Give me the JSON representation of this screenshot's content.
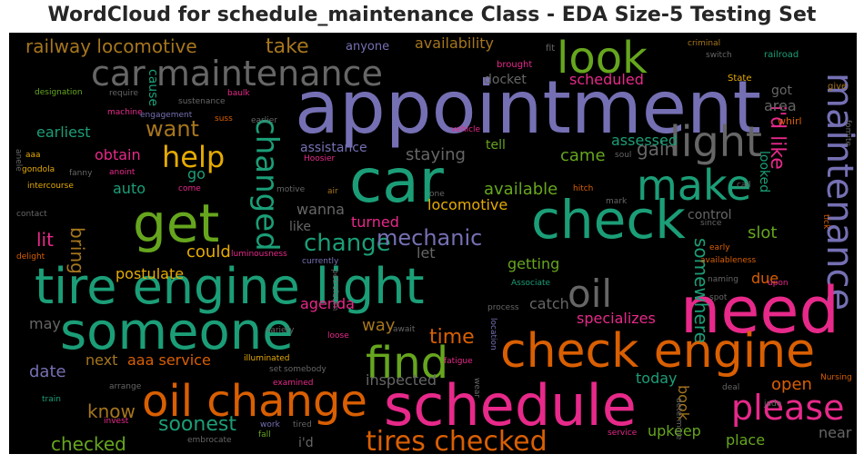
{
  "chart_data": {
    "type": "wordcloud",
    "title": "WordCloud for schedule_maintenance Class - EDA Size-5 Testing Set",
    "background": "#000000",
    "colormap": "Dark2",
    "words": [
      {
        "text": "appointment",
        "color": "#7570b3"
      },
      {
        "text": "car maintenance",
        "color": "#666666"
      },
      {
        "text": "look",
        "color": "#66a61e"
      },
      {
        "text": "light",
        "color": "#666666"
      },
      {
        "text": "maintenance",
        "color": "#7570b3"
      },
      {
        "text": "car",
        "color": "#1b9e77"
      },
      {
        "text": "get",
        "color": "#66a61e"
      },
      {
        "text": "make",
        "color": "#1b9e77"
      },
      {
        "text": "check",
        "color": "#1b9e77"
      },
      {
        "text": "tire engine light",
        "color": "#1b9e77"
      },
      {
        "text": "changed",
        "color": "#1b9e77"
      },
      {
        "text": "someone",
        "color": "#1b9e77"
      },
      {
        "text": "need",
        "color": "#e7298a"
      },
      {
        "text": "oil",
        "color": "#666666"
      },
      {
        "text": "check engine",
        "color": "#d95f02"
      },
      {
        "text": "find",
        "color": "#66a61e"
      },
      {
        "text": "oil change",
        "color": "#d95f02"
      },
      {
        "text": "schedule",
        "color": "#e7298a"
      },
      {
        "text": "please",
        "color": "#e7298a"
      },
      {
        "text": "tires checked",
        "color": "#d95f02"
      },
      {
        "text": "want",
        "color": "#a6761d"
      },
      {
        "text": "help",
        "color": "#e6ab02"
      },
      {
        "text": "change",
        "color": "#1b9e77"
      },
      {
        "text": "mechanic",
        "color": "#7570b3"
      },
      {
        "text": "railway locomotive",
        "color": "#a6761d"
      },
      {
        "text": "take",
        "color": "#a6761d"
      },
      {
        "text": "i'd like",
        "color": "#e7298a"
      },
      {
        "text": "somewhere",
        "color": "#1b9e77"
      },
      {
        "text": "time",
        "color": "#d95f02"
      },
      {
        "text": "soonest",
        "color": "#1b9e77"
      },
      {
        "text": "checked",
        "color": "#66a61e"
      },
      {
        "text": "know",
        "color": "#a6761d"
      },
      {
        "text": "date",
        "color": "#7570b3"
      },
      {
        "text": "available",
        "color": "#66a61e"
      },
      {
        "text": "locomotive",
        "color": "#e6ab02"
      },
      {
        "text": "staying",
        "color": "#666666"
      },
      {
        "text": "came",
        "color": "#66a61e"
      },
      {
        "text": "specializes",
        "color": "#e7298a"
      },
      {
        "text": "scheduled",
        "color": "#e7298a"
      },
      {
        "text": "availability",
        "color": "#a6761d"
      },
      {
        "text": "gain",
        "color": "#666666"
      },
      {
        "text": "slot",
        "color": "#66a61e"
      },
      {
        "text": "could",
        "color": "#e6ab02"
      },
      {
        "text": "postulate",
        "color": "#e6ab02"
      },
      {
        "text": "next",
        "color": "#a6761d"
      },
      {
        "text": "aaa service",
        "color": "#d95f02"
      },
      {
        "text": "obtain",
        "color": "#e7298a"
      },
      {
        "text": "earliest",
        "color": "#1b9e77"
      },
      {
        "text": "assessed",
        "color": "#1b9e77"
      },
      {
        "text": "turned",
        "color": "#e7298a"
      },
      {
        "text": "lit",
        "color": "#e7298a"
      },
      {
        "text": "bring",
        "color": "#a6761d"
      },
      {
        "text": "go",
        "color": "#1b9e77"
      },
      {
        "text": "auto",
        "color": "#1b9e77"
      },
      {
        "text": "wanna",
        "color": "#666666"
      },
      {
        "text": "like",
        "color": "#666666"
      },
      {
        "text": "let",
        "color": "#666666"
      },
      {
        "text": "getting",
        "color": "#66a61e"
      },
      {
        "text": "catch",
        "color": "#666666"
      },
      {
        "text": "agenda",
        "color": "#e7298a"
      },
      {
        "text": "way",
        "color": "#a6761d"
      },
      {
        "text": "may",
        "color": "#666666"
      },
      {
        "text": "open",
        "color": "#d95f02"
      },
      {
        "text": "near",
        "color": "#666666"
      },
      {
        "text": "place",
        "color": "#66a61e"
      },
      {
        "text": "upkeep",
        "color": "#66a61e"
      },
      {
        "text": "today",
        "color": "#1b9e77"
      },
      {
        "text": "book",
        "color": "#a6761d"
      },
      {
        "text": "inspected",
        "color": "#666666"
      },
      {
        "text": "i'd",
        "color": "#666666"
      },
      {
        "text": "control",
        "color": "#666666"
      },
      {
        "text": "looked",
        "color": "#1b9e77"
      },
      {
        "text": "area",
        "color": "#666666"
      },
      {
        "text": "got",
        "color": "#666666"
      },
      {
        "text": "due",
        "color": "#d95f02"
      },
      {
        "text": "tell",
        "color": "#66a61e"
      },
      {
        "text": "docket",
        "color": "#666666"
      },
      {
        "text": "cause",
        "color": "#1b9e77"
      },
      {
        "text": "assistance",
        "color": "#7570b3"
      },
      {
        "text": "anyone",
        "color": "#7570b3"
      },
      {
        "text": "whirl",
        "color": "#d95f02"
      },
      {
        "text": "brought",
        "color": "#e7298a"
      },
      {
        "text": "fit",
        "color": "#666666"
      },
      {
        "text": "criminal",
        "color": "#a6761d"
      },
      {
        "text": "switch",
        "color": "#666666"
      },
      {
        "text": "railroad",
        "color": "#1b9e77"
      },
      {
        "text": "State",
        "color": "#e6ab02"
      },
      {
        "text": "give",
        "color": "#a6761d"
      },
      {
        "text": "fomite",
        "color": "#666666"
      },
      {
        "text": "designation",
        "color": "#66a61e"
      },
      {
        "text": "require",
        "color": "#666666"
      },
      {
        "text": "sustenance",
        "color": "#666666"
      },
      {
        "text": "baulk",
        "color": "#e7298a"
      },
      {
        "text": "machine",
        "color": "#e7298a"
      },
      {
        "text": "engagement",
        "color": "#7570b3"
      },
      {
        "text": "suss",
        "color": "#d95f02"
      },
      {
        "text": "earlier",
        "color": "#666666"
      },
      {
        "text": "aaa",
        "color": "#e6ab02"
      },
      {
        "text": "anele",
        "color": "#666666"
      },
      {
        "text": "gondola",
        "color": "#e6ab02"
      },
      {
        "text": "fanny",
        "color": "#666666"
      },
      {
        "text": "anoint",
        "color": "#e7298a"
      },
      {
        "text": "intercourse",
        "color": "#e6ab02"
      },
      {
        "text": "Hoosier",
        "color": "#e7298a"
      },
      {
        "text": "vehicle",
        "color": "#e7298a"
      },
      {
        "text": "soul",
        "color": "#666666"
      },
      {
        "text": "come",
        "color": "#e7298a"
      },
      {
        "text": "motive",
        "color": "#666666"
      },
      {
        "text": "air",
        "color": "#a6761d"
      },
      {
        "text": "one",
        "color": "#666666"
      },
      {
        "text": "hitch",
        "color": "#d95f02"
      },
      {
        "text": "mark",
        "color": "#666666"
      },
      {
        "text": "call",
        "color": "#666666"
      },
      {
        "text": "tick",
        "color": "#d95f02"
      },
      {
        "text": "since",
        "color": "#666666"
      },
      {
        "text": "contact",
        "color": "#666666"
      },
      {
        "text": "early",
        "color": "#d95f02"
      },
      {
        "text": "delight",
        "color": "#d95f02"
      },
      {
        "text": "luminousness",
        "color": "#e7298a"
      },
      {
        "text": "currently",
        "color": "#7570b3"
      },
      {
        "text": "availableness",
        "color": "#d95f02"
      },
      {
        "text": "naming",
        "color": "#666666"
      },
      {
        "text": "upon",
        "color": "#e7298a"
      },
      {
        "text": "Associate",
        "color": "#1b9e77"
      },
      {
        "text": "spot",
        "color": "#666666"
      },
      {
        "text": "petroleum",
        "color": "#666666"
      },
      {
        "text": "variety",
        "color": "#666666"
      },
      {
        "text": "process",
        "color": "#666666"
      },
      {
        "text": "loose",
        "color": "#e7298a"
      },
      {
        "text": "await",
        "color": "#666666"
      },
      {
        "text": "location",
        "color": "#7570b3"
      },
      {
        "text": "illuminated",
        "color": "#e6ab02"
      },
      {
        "text": "set",
        "color": "#666666"
      },
      {
        "text": "somebody",
        "color": "#666666"
      },
      {
        "text": "examined",
        "color": "#e7298a"
      },
      {
        "text": "fatigue",
        "color": "#e7298a"
      },
      {
        "text": "wear",
        "color": "#666666"
      },
      {
        "text": "arrange",
        "color": "#666666"
      },
      {
        "text": "train",
        "color": "#1b9e77"
      },
      {
        "text": "invest",
        "color": "#e7298a"
      },
      {
        "text": "work",
        "color": "#7570b3"
      },
      {
        "text": "tired",
        "color": "#666666"
      },
      {
        "text": "fall",
        "color": "#66a61e"
      },
      {
        "text": "embrocate",
        "color": "#666666"
      },
      {
        "text": "service",
        "color": "#e7298a"
      },
      {
        "text": "determine",
        "color": "#666666"
      },
      {
        "text": "deal",
        "color": "#666666"
      },
      {
        "text": "jade",
        "color": "#666666"
      },
      {
        "text": "Nursing",
        "color": "#d95f02"
      }
    ]
  }
}
